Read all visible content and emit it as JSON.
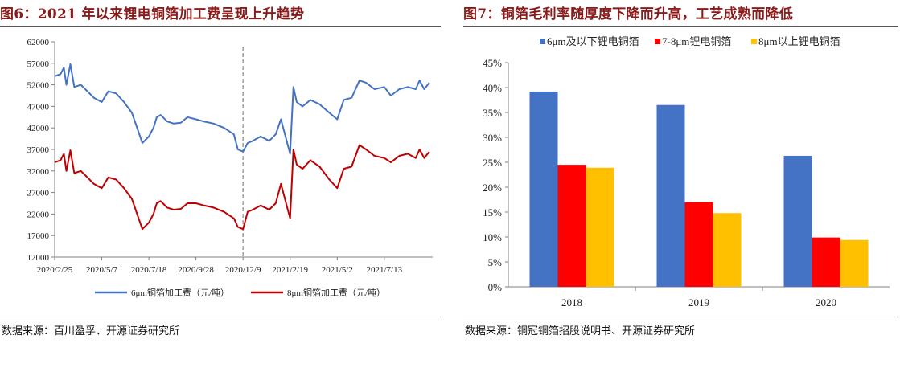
{
  "left": {
    "title": "图6：2021 年以来锂电铜箔加工费呈现上升趋势",
    "source": "数据来源：百川盈孚、开源证券研究所"
  },
  "right": {
    "title": "图7：铜箔毛利率随厚度下降而升高，工艺成熟而降低",
    "source": "数据来源：铜冠铜箔招股说明书、开源证券研究所"
  },
  "chart_data": [
    {
      "type": "line",
      "title": "",
      "xlabel": "",
      "ylabel": "",
      "ylim": [
        12000,
        62000
      ],
      "yticks": [
        12000,
        17000,
        22000,
        27000,
        32000,
        37000,
        42000,
        47000,
        52000,
        57000,
        62000
      ],
      "xlim": [
        "2020-02-25",
        "2021-09-25"
      ],
      "xticks": [
        "2020/2/25",
        "2020/5/7",
        "2020/7/18",
        "2020/9/28",
        "2020/12/9",
        "2021/2/19",
        "2021/5/2",
        "2021/7/13"
      ],
      "grid": false,
      "legend": "bottom",
      "annotations": [
        {
          "type": "vertical-dashed-line",
          "x": "2020-12-09",
          "color": "#a6a6a6"
        }
      ],
      "series": [
        {
          "name": "6μm铜箔加工费（元/吨）",
          "color": "#4472c4",
          "points": [
            [
              "2020-02-25",
              54000
            ],
            [
              "2020-03-05",
              54500
            ],
            [
              "2020-03-10",
              56000
            ],
            [
              "2020-03-14",
              52000
            ],
            [
              "2020-03-20",
              56800
            ],
            [
              "2020-03-26",
              51500
            ],
            [
              "2020-04-05",
              52000
            ],
            [
              "2020-04-15",
              50500
            ],
            [
              "2020-04-25",
              49000
            ],
            [
              "2020-05-07",
              48000
            ],
            [
              "2020-05-17",
              50500
            ],
            [
              "2020-05-29",
              50000
            ],
            [
              "2020-06-10",
              48000
            ],
            [
              "2020-06-22",
              45500
            ],
            [
              "2020-06-30",
              42000
            ],
            [
              "2020-07-08",
              38500
            ],
            [
              "2020-07-18",
              40000
            ],
            [
              "2020-07-25",
              42000
            ],
            [
              "2020-07-30",
              44500
            ],
            [
              "2020-08-05",
              45000
            ],
            [
              "2020-08-15",
              43500
            ],
            [
              "2020-08-25",
              43000
            ],
            [
              "2020-09-05",
              43200
            ],
            [
              "2020-09-15",
              44500
            ],
            [
              "2020-09-28",
              44000
            ],
            [
              "2020-10-10",
              43500
            ],
            [
              "2020-10-25",
              43000
            ],
            [
              "2020-11-10",
              42000
            ],
            [
              "2020-11-25",
              40500
            ],
            [
              "2020-12-01",
              37000
            ],
            [
              "2020-12-09",
              36500
            ],
            [
              "2020-12-16",
              38500
            ],
            [
              "2020-12-24",
              39000
            ],
            [
              "2021-01-05",
              40000
            ],
            [
              "2021-01-18",
              39000
            ],
            [
              "2021-01-28",
              40500
            ],
            [
              "2021-02-05",
              44000
            ],
            [
              "2021-02-12",
              40000
            ],
            [
              "2021-02-19",
              36000
            ],
            [
              "2021-02-24",
              51500
            ],
            [
              "2021-03-01",
              48000
            ],
            [
              "2021-03-10",
              47000
            ],
            [
              "2021-03-22",
              48500
            ],
            [
              "2021-04-05",
              47500
            ],
            [
              "2021-04-20",
              45500
            ],
            [
              "2021-05-02",
              44000
            ],
            [
              "2021-05-12",
              48500
            ],
            [
              "2021-05-24",
              49000
            ],
            [
              "2021-06-05",
              53000
            ],
            [
              "2021-06-15",
              52500
            ],
            [
              "2021-06-28",
              51000
            ],
            [
              "2021-07-13",
              51500
            ],
            [
              "2021-07-23",
              49500
            ],
            [
              "2021-08-05",
              51000
            ],
            [
              "2021-08-18",
              51500
            ],
            [
              "2021-08-30",
              51000
            ],
            [
              "2021-09-05",
              53000
            ],
            [
              "2021-09-12",
              51000
            ],
            [
              "2021-09-20",
              52500
            ]
          ]
        },
        {
          "name": "8μm铜箔加工费（元/吨）",
          "color": "#c00000",
          "points": [
            [
              "2020-02-25",
              34000
            ],
            [
              "2020-03-05",
              34500
            ],
            [
              "2020-03-10",
              36000
            ],
            [
              "2020-03-14",
              32000
            ],
            [
              "2020-03-20",
              36800
            ],
            [
              "2020-03-26",
              31500
            ],
            [
              "2020-04-05",
              32000
            ],
            [
              "2020-04-15",
              30500
            ],
            [
              "2020-04-25",
              29000
            ],
            [
              "2020-05-07",
              28000
            ],
            [
              "2020-05-17",
              30500
            ],
            [
              "2020-05-29",
              30000
            ],
            [
              "2020-06-10",
              28000
            ],
            [
              "2020-06-22",
              25500
            ],
            [
              "2020-06-30",
              22000
            ],
            [
              "2020-07-08",
              18500
            ],
            [
              "2020-07-18",
              20000
            ],
            [
              "2020-07-25",
              22000
            ],
            [
              "2020-07-30",
              24500
            ],
            [
              "2020-08-05",
              25000
            ],
            [
              "2020-08-15",
              23500
            ],
            [
              "2020-08-25",
              23000
            ],
            [
              "2020-09-05",
              23200
            ],
            [
              "2020-09-15",
              24500
            ],
            [
              "2020-09-28",
              24500
            ],
            [
              "2020-10-10",
              24000
            ],
            [
              "2020-10-25",
              23500
            ],
            [
              "2020-11-10",
              22500
            ],
            [
              "2020-11-25",
              21000
            ],
            [
              "2020-12-01",
              19000
            ],
            [
              "2020-12-09",
              18500
            ],
            [
              "2020-12-16",
              22500
            ],
            [
              "2020-12-24",
              23000
            ],
            [
              "2021-01-05",
              24000
            ],
            [
              "2021-01-18",
              23000
            ],
            [
              "2021-01-28",
              24500
            ],
            [
              "2021-02-05",
              29000
            ],
            [
              "2021-02-12",
              25000
            ],
            [
              "2021-02-19",
              21000
            ],
            [
              "2021-02-24",
              37000
            ],
            [
              "2021-03-01",
              33500
            ],
            [
              "2021-03-10",
              32500
            ],
            [
              "2021-03-22",
              34500
            ],
            [
              "2021-04-05",
              33000
            ],
            [
              "2021-04-20",
              30000
            ],
            [
              "2021-05-02",
              28000
            ],
            [
              "2021-05-12",
              32500
            ],
            [
              "2021-05-24",
              33000
            ],
            [
              "2021-06-05",
              38000
            ],
            [
              "2021-06-15",
              37000
            ],
            [
              "2021-06-28",
              35500
            ],
            [
              "2021-07-13",
              35000
            ],
            [
              "2021-07-23",
              34000
            ],
            [
              "2021-08-05",
              35500
            ],
            [
              "2021-08-18",
              36000
            ],
            [
              "2021-08-30",
              35000
            ],
            [
              "2021-09-05",
              37000
            ],
            [
              "2021-09-12",
              35000
            ],
            [
              "2021-09-20",
              36500
            ]
          ]
        }
      ]
    },
    {
      "type": "bar",
      "title": "",
      "xlabel": "",
      "ylabel": "",
      "categories": [
        "2018",
        "2019",
        "2020"
      ],
      "ylim": [
        0,
        45
      ],
      "yticks": [
        "0%",
        "5%",
        "10%",
        "15%",
        "20%",
        "25%",
        "30%",
        "35%",
        "40%",
        "45%"
      ],
      "grid": false,
      "legend": "top",
      "series": [
        {
          "name": "6μm及以下锂电铜箔",
          "color": "#4472c4",
          "values": [
            39.2,
            36.5,
            26.3
          ]
        },
        {
          "name": "7-8μm锂电铜箔",
          "color": "#ff0000",
          "values": [
            24.5,
            17.0,
            9.9
          ]
        },
        {
          "name": "8μm以上锂电铜箔",
          "color": "#ffc000",
          "values": [
            23.9,
            14.8,
            9.4
          ]
        }
      ]
    }
  ]
}
